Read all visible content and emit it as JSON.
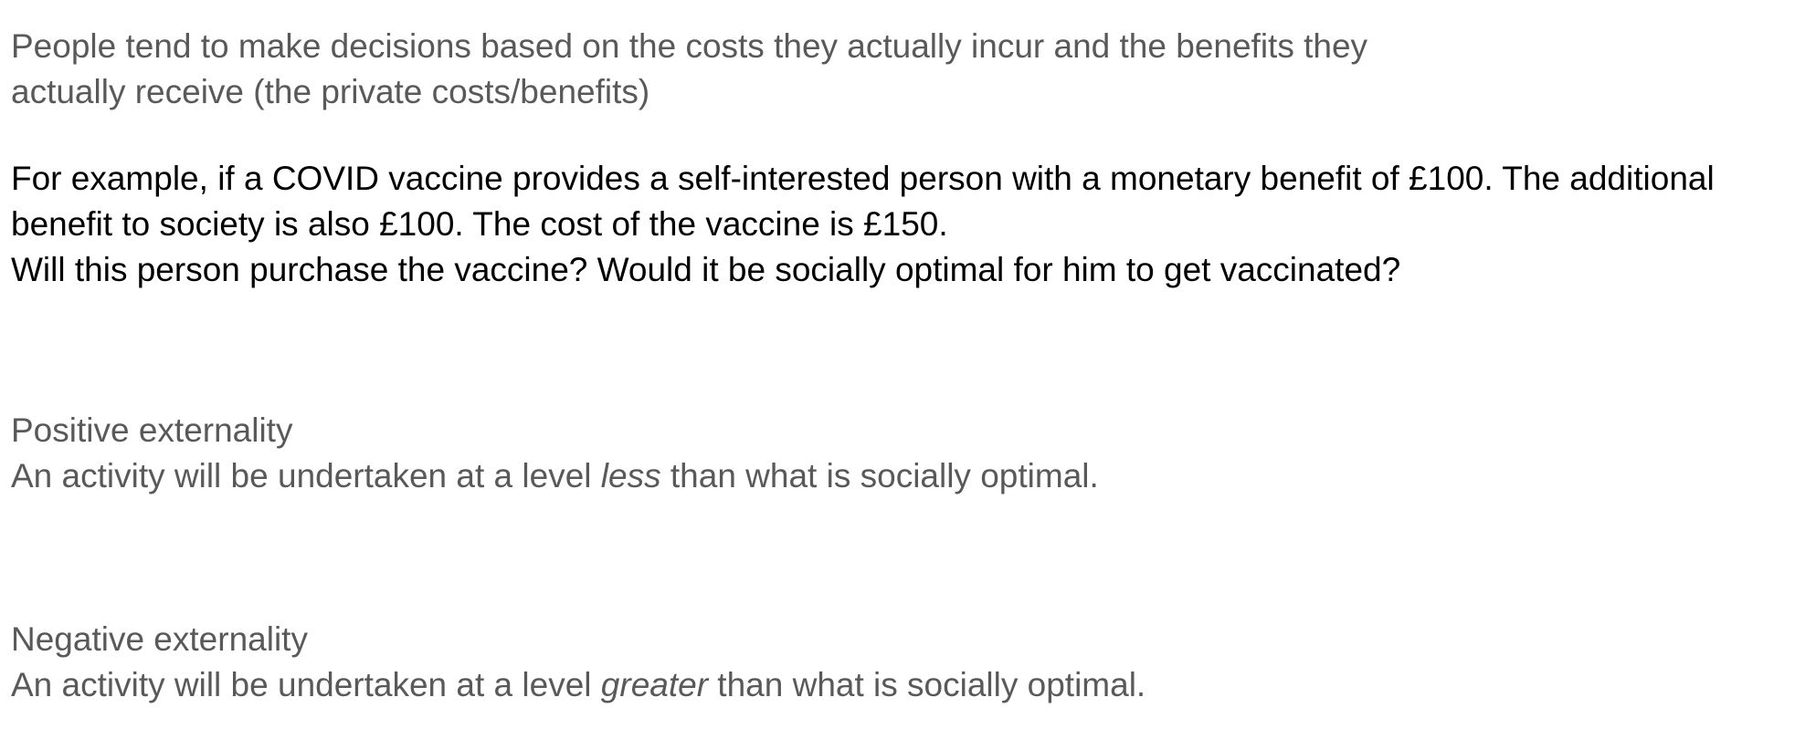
{
  "intro": {
    "line1": "People tend to make decisions based on the costs they actually incur and the benefits they",
    "line2": "actually receive (the private costs/benefits)"
  },
  "example": {
    "line1": "For example, if a COVID vaccine provides a self-interested person with a monetary benefit of £100. The additional",
    "line2": "benefit to society is also £100. The cost of the vaccine is £150.",
    "line3": "Will this person purchase the vaccine? Would it be socially optimal for him to get vaccinated?"
  },
  "positive": {
    "heading": "Positive externality",
    "text_before": "An activity will be undertaken at a level ",
    "emphasis": "less",
    "text_after": " than what is socially optimal."
  },
  "negative": {
    "heading": "Negative externality",
    "text_before": "An activity will be undertaken at a level ",
    "emphasis": "greater",
    "text_after": " than what is socially optimal."
  },
  "colors": {
    "grey_text": "#595959",
    "black_text": "#000000"
  }
}
